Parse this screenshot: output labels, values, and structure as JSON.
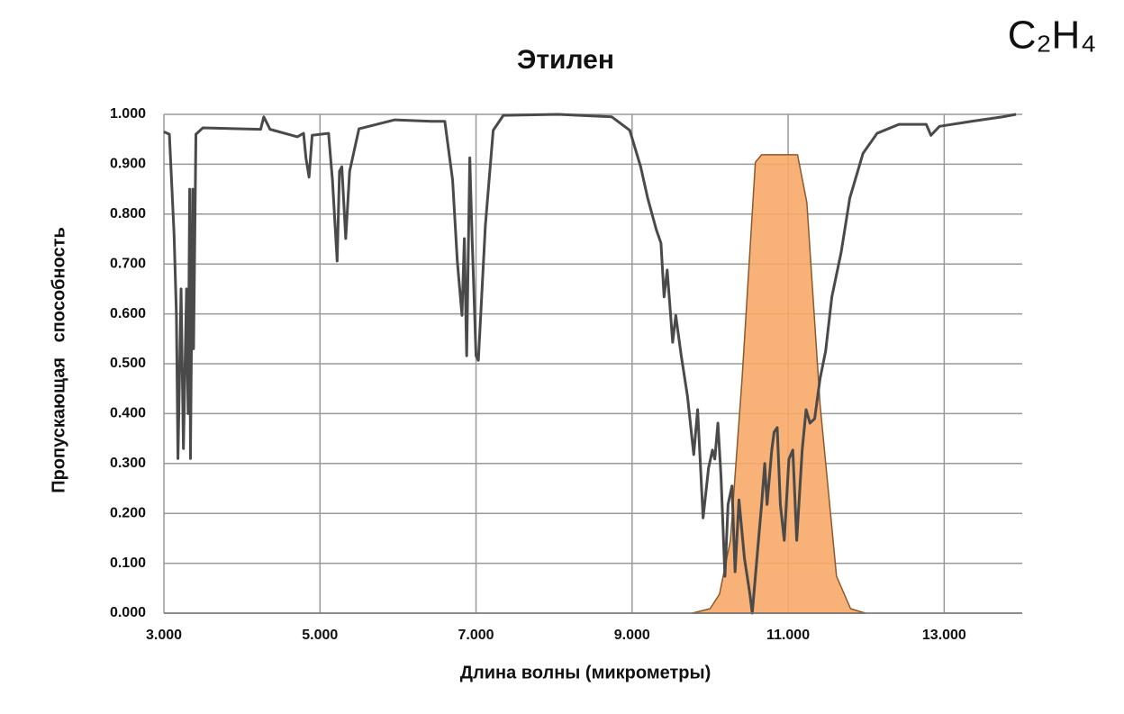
{
  "chart_data": {
    "type": "line",
    "title": "Этилен",
    "annotation": "C₂H₄",
    "xlabel": "Длина волны (микрометры)",
    "ylabel": "Пропускающая   способность",
    "xlim": [
      3,
      14
    ],
    "ylim": [
      0,
      1
    ],
    "xticks": [
      {
        "value": 3,
        "label": "3.000"
      },
      {
        "value": 5,
        "label": "5.000"
      },
      {
        "value": 7,
        "label": "7.000"
      },
      {
        "value": 9,
        "label": "9.000"
      },
      {
        "value": 11,
        "label": "11.000"
      },
      {
        "value": 13,
        "label": "13.000"
      }
    ],
    "yticks": [
      {
        "value": 0,
        "label": "0.000"
      },
      {
        "value": 0.1,
        "label": "0.100"
      },
      {
        "value": 0.2,
        "label": "0.200"
      },
      {
        "value": 0.3,
        "label": "0.300"
      },
      {
        "value": 0.4,
        "label": "0.400"
      },
      {
        "value": 0.5,
        "label": "0.500"
      },
      {
        "value": 0.6,
        "label": "0.600"
      },
      {
        "value": 0.7,
        "label": "0.700"
      },
      {
        "value": 0.8,
        "label": "0.800"
      },
      {
        "value": 0.9,
        "label": "0.900"
      },
      {
        "value": 1,
        "label": "1.000"
      }
    ],
    "grid": true,
    "series": [
      {
        "color": "#f7a867",
        "fill": true,
        "x": [
          9.77,
          10.0,
          10.12,
          10.26,
          10.41,
          10.58,
          10.66,
          11.12,
          11.24,
          11.41,
          11.62,
          11.8,
          11.99
        ],
        "values": [
          0,
          0.009,
          0.038,
          0.146,
          0.471,
          0.904,
          0.919,
          0.919,
          0.823,
          0.417,
          0.074,
          0.009,
          0
        ]
      },
      {
        "color": "#4a4a4a",
        "fill": false,
        "x": [
          3.0,
          3.07,
          3.13,
          3.16,
          3.18,
          3.22,
          3.25,
          3.29,
          3.31,
          3.33,
          3.34,
          3.37,
          3.38,
          3.41,
          3.5,
          4.24,
          4.28,
          4.36,
          4.71,
          4.79,
          4.82,
          4.86,
          4.9,
          5.11,
          5.16,
          5.22,
          5.25,
          5.28,
          5.33,
          5.38,
          5.5,
          5.96,
          6.43,
          6.6,
          6.7,
          6.76,
          6.82,
          6.85,
          6.88,
          6.92,
          6.95,
          7.0,
          7.03,
          7.12,
          7.22,
          7.35,
          8.05,
          8.74,
          8.97,
          9.11,
          9.2,
          9.31,
          9.37,
          9.41,
          9.45,
          9.52,
          9.56,
          9.63,
          9.71,
          9.79,
          9.84,
          9.91,
          9.98,
          10.03,
          10.06,
          10.1,
          10.14,
          10.19,
          10.23,
          10.28,
          10.32,
          10.37,
          10.44,
          10.51,
          10.54,
          10.6,
          10.66,
          10.7,
          10.73,
          10.79,
          10.82,
          10.86,
          10.9,
          10.95,
          11.01,
          11.06,
          11.11,
          11.18,
          11.23,
          11.28,
          11.34,
          11.41,
          11.48,
          11.56,
          11.68,
          11.79,
          11.96,
          12.14,
          12.42,
          12.77,
          12.83,
          12.94,
          13.35,
          13.75,
          13.92
        ],
        "values": [
          0.965,
          0.96,
          0.76,
          0.6,
          0.31,
          0.65,
          0.33,
          0.65,
          0.4,
          0.85,
          0.31,
          0.85,
          0.53,
          0.96,
          0.973,
          0.97,
          0.995,
          0.97,
          0.955,
          0.962,
          0.913,
          0.874,
          0.958,
          0.962,
          0.868,
          0.706,
          0.886,
          0.895,
          0.751,
          0.886,
          0.971,
          0.989,
          0.986,
          0.986,
          0.868,
          0.706,
          0.597,
          0.751,
          0.516,
          0.913,
          0.751,
          0.516,
          0.507,
          0.778,
          0.968,
          0.998,
          1.0,
          0.995,
          0.968,
          0.895,
          0.832,
          0.769,
          0.742,
          0.634,
          0.688,
          0.543,
          0.597,
          0.516,
          0.435,
          0.318,
          0.408,
          0.191,
          0.291,
          0.327,
          0.309,
          0.381,
          0.273,
          0.074,
          0.218,
          0.255,
          0.083,
          0.227,
          0.11,
          0.038,
          0.0,
          0.11,
          0.218,
          0.3,
          0.218,
          0.327,
          0.363,
          0.372,
          0.218,
          0.146,
          0.309,
          0.327,
          0.146,
          0.327,
          0.408,
          0.381,
          0.39,
          0.471,
          0.525,
          0.634,
          0.724,
          0.832,
          0.922,
          0.962,
          0.98,
          0.98,
          0.958,
          0.976,
          0.986,
          0.995,
          1.0
        ]
      }
    ]
  }
}
